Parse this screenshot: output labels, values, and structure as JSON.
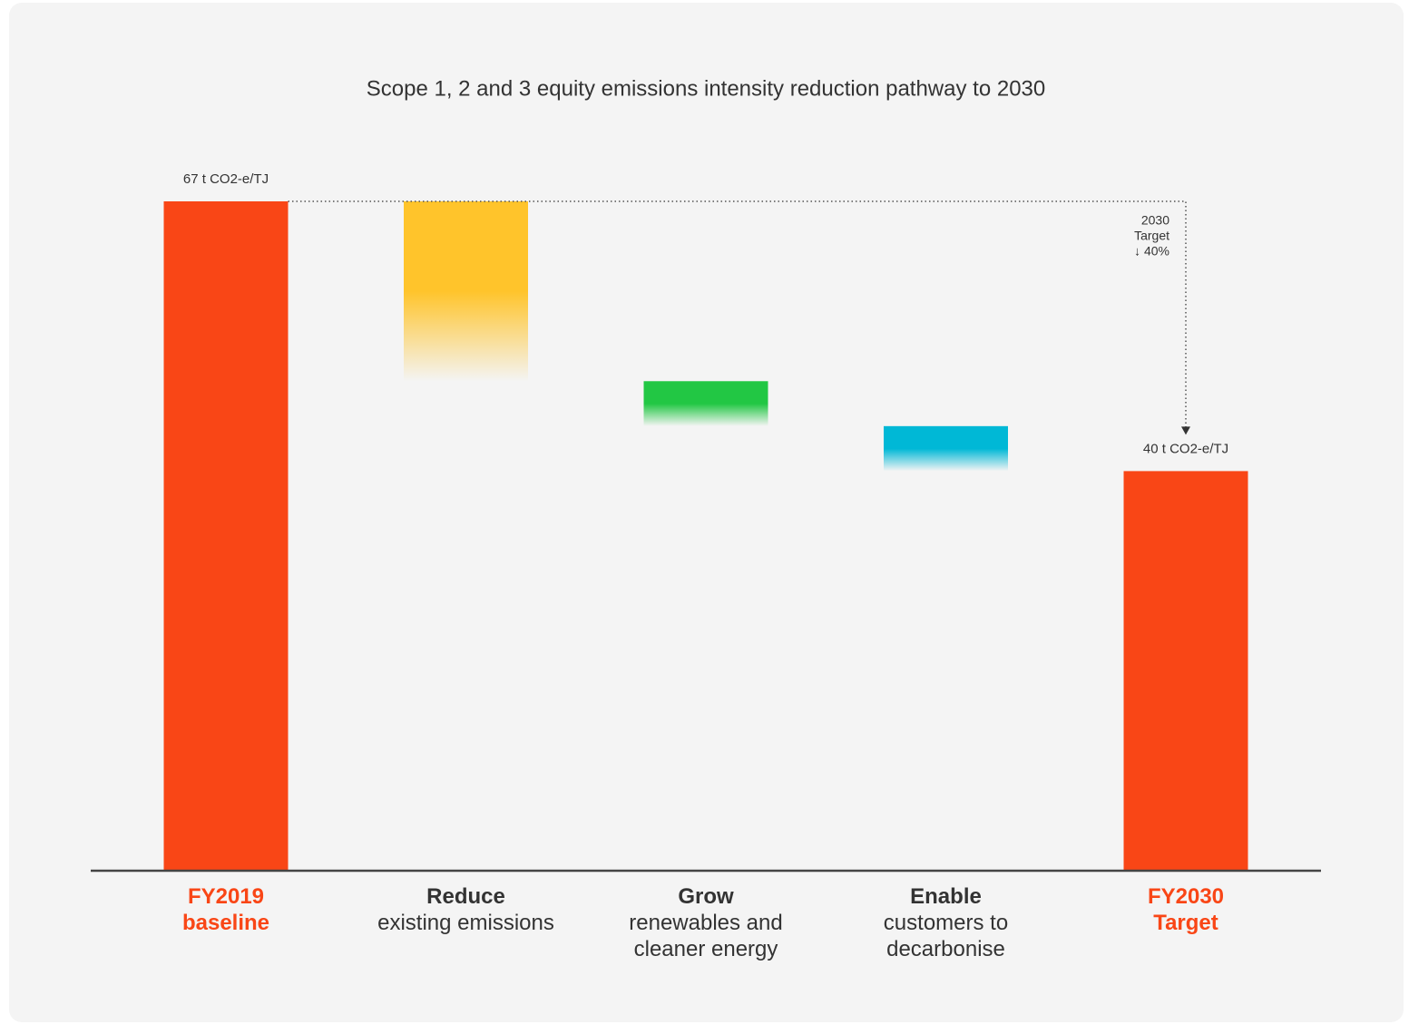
{
  "chart_data": {
    "type": "waterfall",
    "title": "Scope 1, 2 and 3 equity emissions intensity reduction pathway to 2030",
    "categories": [
      "FY2019 baseline",
      "Reduce",
      "Grow",
      "Enable",
      "FY2030 Target"
    ],
    "category_descriptions": [
      null,
      "existing emissions",
      "renewables and cleaner energy",
      "customers to decarbonise",
      null
    ],
    "measure": [
      "absolute",
      "relative",
      "relative",
      "relative",
      "absolute"
    ],
    "values": [
      67,
      -18,
      -4.5,
      -4.5,
      40
    ],
    "value_labels": [
      "67 t CO2-e/TJ",
      null,
      null,
      null,
      "40 t CO2-e/TJ"
    ],
    "colors": [
      "#f94616",
      "#ffc42b",
      "#22c744",
      "#00b8d6",
      "#f94616"
    ],
    "annotation": [
      "2030",
      "Target",
      "↓ 40%"
    ]
  }
}
